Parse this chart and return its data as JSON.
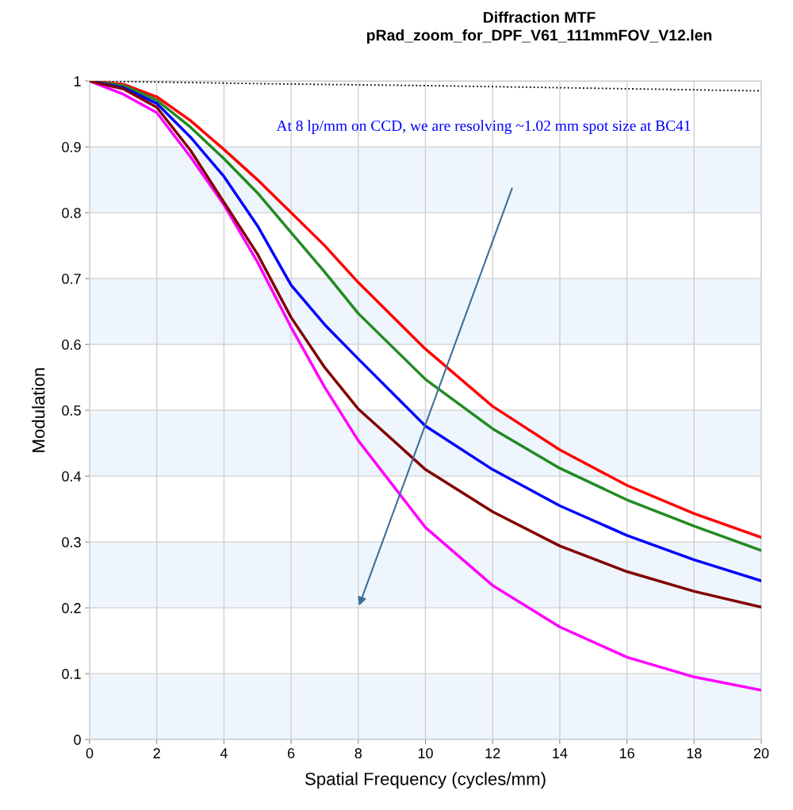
{
  "chart_data": {
    "type": "line",
    "title": "Diffraction MTF",
    "subtitle": "pRad_zoom_for_DPF_V61_111mmFOV_V12.len",
    "xlabel": "Spatial Frequency (cycles/mm)",
    "ylabel": "Modulation",
    "xlim": [
      0,
      20
    ],
    "ylim": [
      0,
      1
    ],
    "xticks": [
      0,
      2,
      4,
      6,
      8,
      10,
      12,
      14,
      16,
      18,
      20
    ],
    "yticks": [
      0,
      0.1,
      0.2,
      0.3,
      0.4,
      0.5,
      0.6,
      0.7,
      0.8,
      0.9,
      1
    ],
    "grid": true,
    "legend": false,
    "marker": "none",
    "bands": [
      {
        "axis": "y",
        "from": 0,
        "to": 0.1,
        "color": "#eef5fc"
      },
      {
        "axis": "y",
        "from": 0.2,
        "to": 0.3,
        "color": "#eef5fc"
      },
      {
        "axis": "y",
        "from": 0.4,
        "to": 0.5,
        "color": "#eef5fc"
      },
      {
        "axis": "y",
        "from": 0.6,
        "to": 0.7,
        "color": "#eef5fc"
      },
      {
        "axis": "y",
        "from": 0.8,
        "to": 0.9,
        "color": "#eef5fc"
      }
    ],
    "annotations": [
      "At 8 lp/mm on CCD, we are resolving ~1.02 mm spot size at BC41"
    ],
    "series": [
      {
        "color": "#000000",
        "line_style": "dotted",
        "x": [
          0,
          5,
          10,
          15,
          20
        ],
        "values": [
          1,
          0.996,
          0.993,
          0.989,
          0.985
        ]
      },
      {
        "color": "#ff0000",
        "line_style": "solid",
        "x": [
          0,
          1,
          2,
          3,
          4,
          5,
          6,
          7,
          8,
          10,
          12,
          14,
          16,
          18,
          20
        ],
        "values": [
          1,
          0.995,
          0.976,
          0.94,
          0.896,
          0.85,
          0.8,
          0.75,
          0.694,
          0.593,
          0.506,
          0.44,
          0.386,
          0.343,
          0.307
        ]
      },
      {
        "color": "#228b22",
        "line_style": "solid",
        "x": [
          0,
          1,
          2,
          3,
          4,
          5,
          6,
          7,
          8,
          10,
          12,
          14,
          16,
          18,
          20
        ],
        "values": [
          1,
          0.993,
          0.971,
          0.93,
          0.882,
          0.83,
          0.77,
          0.71,
          0.647,
          0.547,
          0.472,
          0.412,
          0.364,
          0.324,
          0.287
        ]
      },
      {
        "color": "#0000ff",
        "line_style": "solid",
        "x": [
          0,
          1,
          2,
          3,
          4,
          5,
          6,
          7,
          8,
          10,
          12,
          14,
          16,
          18,
          20
        ],
        "values": [
          1,
          0.99,
          0.966,
          0.915,
          0.855,
          0.78,
          0.69,
          0.63,
          0.578,
          0.476,
          0.41,
          0.355,
          0.31,
          0.273,
          0.241
        ]
      },
      {
        "color": "#ff00ff",
        "line_style": "solid",
        "x": [
          0,
          1,
          2,
          3,
          4,
          5,
          6,
          7,
          8,
          10,
          12,
          14,
          16,
          18,
          20
        ],
        "values": [
          1,
          0.98,
          0.952,
          0.885,
          0.812,
          0.725,
          0.626,
          0.535,
          0.454,
          0.322,
          0.234,
          0.171,
          0.125,
          0.095,
          0.075
        ]
      },
      {
        "color": "#800000",
        "line_style": "solid",
        "x": [
          0,
          1,
          2,
          3,
          4,
          5,
          6,
          7,
          8,
          10,
          12,
          14,
          16,
          18,
          20
        ],
        "values": [
          1,
          0.988,
          0.96,
          0.895,
          0.816,
          0.737,
          0.641,
          0.565,
          0.502,
          0.41,
          0.346,
          0.294,
          0.255,
          0.225,
          0.201
        ]
      }
    ]
  }
}
